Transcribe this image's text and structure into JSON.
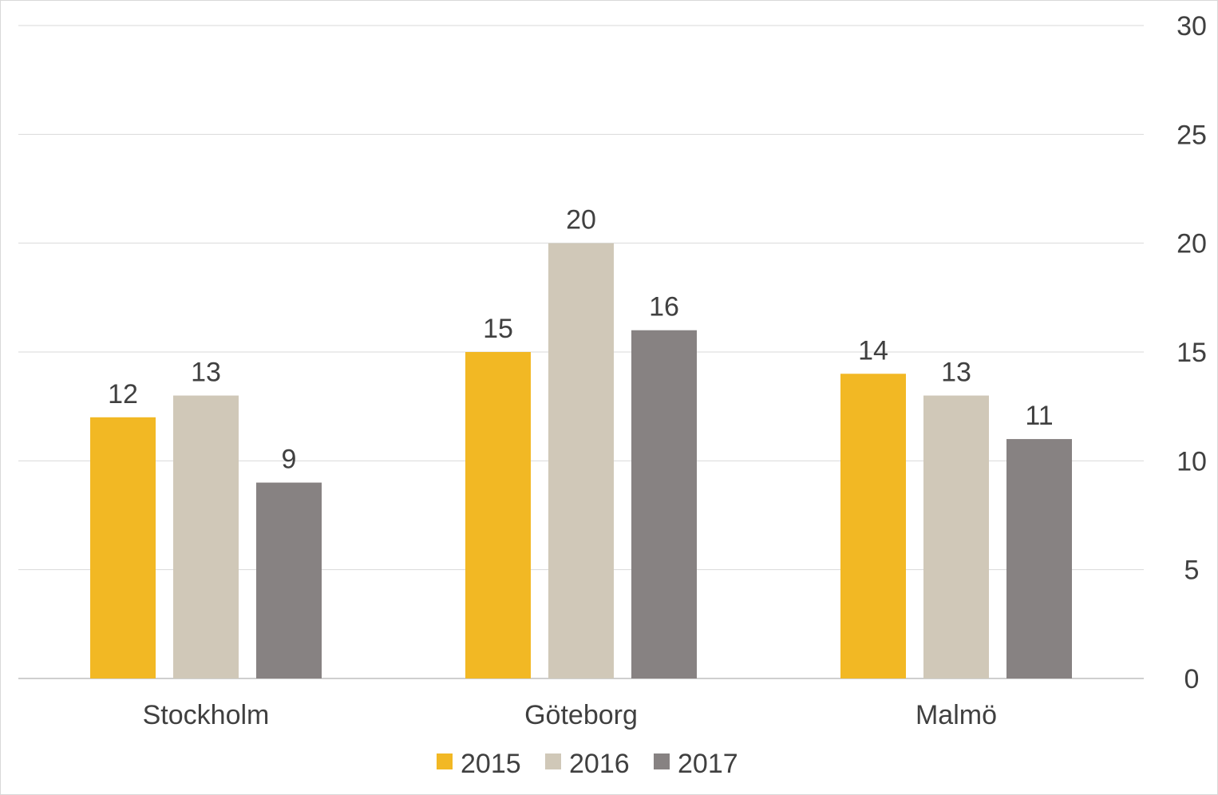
{
  "chart_data": {
    "type": "bar",
    "categories": [
      "Stockholm",
      "Göteborg",
      "Malmö"
    ],
    "series": [
      {
        "name": "2015",
        "values": [
          12,
          15,
          14
        ],
        "labels": [
          "12",
          "15",
          "14"
        ],
        "color": "#f2b824"
      },
      {
        "name": "2016",
        "values": [
          13,
          20,
          13
        ],
        "labels": [
          "13",
          "20",
          "13"
        ],
        "color": "#d0c8b8"
      },
      {
        "name": "2017",
        "values": [
          9,
          16,
          11
        ],
        "labels": [
          "9",
          "16",
          "11"
        ],
        "color": "#878282"
      }
    ],
    "ylim": [
      0,
      30
    ],
    "yticks": [
      0,
      5,
      10,
      15,
      20,
      25,
      30
    ],
    "y_axis_side": "right",
    "grid": true,
    "legend": {
      "position": "bottom"
    }
  }
}
